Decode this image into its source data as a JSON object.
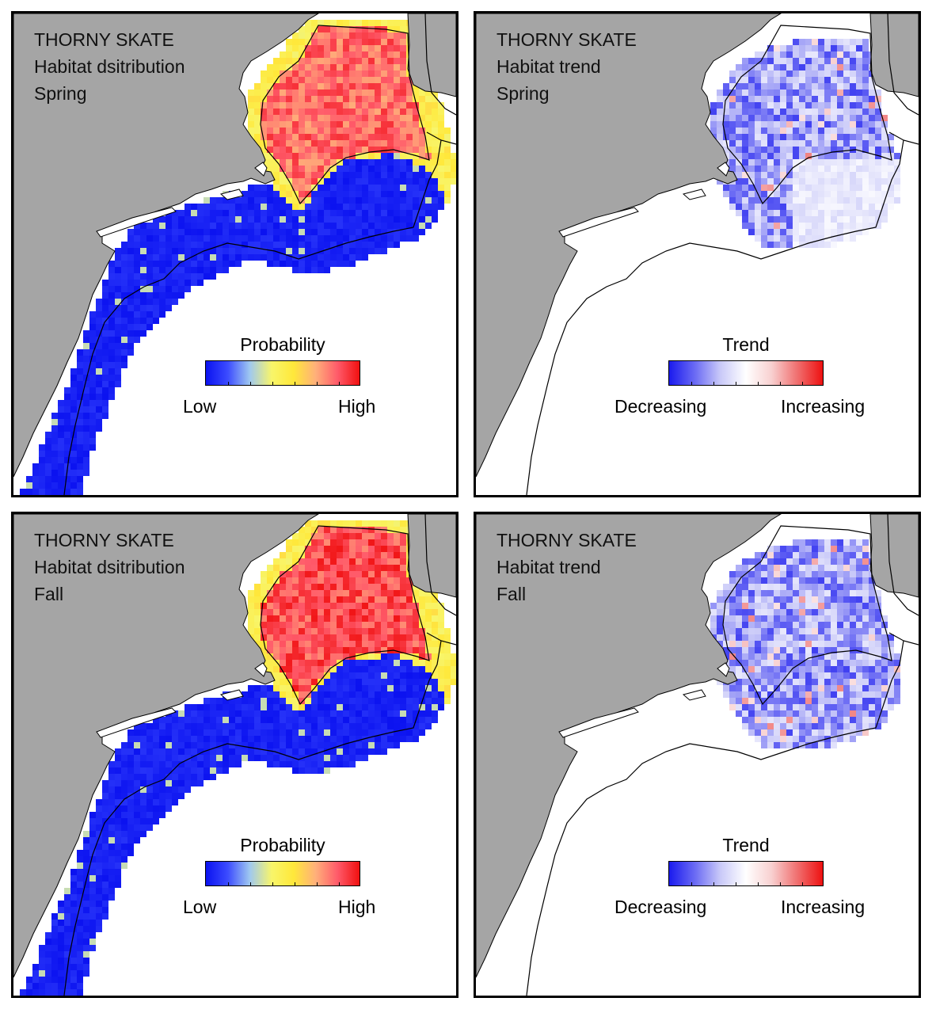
{
  "colors": {
    "land": "#a5a5a5",
    "water": "#ffffff",
    "probability_ramp": [
      "#0b12f0",
      "#3c4cff",
      "#9fc8f0",
      "#f8f56a",
      "#ffe83a",
      "#ffb07a",
      "#ff5a6a",
      "#f01010"
    ],
    "trend_ramp": [
      "#1a1aee",
      "#6a6af4",
      "#c9c9f8",
      "#ffffff",
      "#f8d0d0",
      "#f07070",
      "#ee1111"
    ]
  },
  "panels": [
    {
      "id": "spring-distribution",
      "title": [
        "THORNY SKATE",
        "Habitat dsitribution",
        "Spring"
      ],
      "legend": {
        "title": "Probability",
        "low": "Low",
        "high": "High",
        "ramp": "probability_ramp"
      },
      "kind": "distribution"
    },
    {
      "id": "spring-trend",
      "title": [
        "THORNY SKATE",
        "Habitat trend",
        "Spring"
      ],
      "legend": {
        "title": "Trend",
        "low": "Decreasing",
        "high": "Increasing",
        "ramp": "trend_ramp"
      },
      "kind": "trend"
    },
    {
      "id": "fall-distribution",
      "title": [
        "THORNY SKATE",
        "Habitat dsitribution",
        "Fall"
      ],
      "legend": {
        "title": "Probability",
        "low": "Low",
        "high": "High",
        "ramp": "probability_ramp"
      },
      "kind": "distribution"
    },
    {
      "id": "fall-trend",
      "title": [
        "THORNY SKATE",
        "Habitat trend",
        "Fall"
      ],
      "legend": {
        "title": "Trend",
        "low": "Decreasing",
        "high": "Increasing",
        "ramp": "trend_ramp"
      },
      "kind": "trend"
    }
  ]
}
